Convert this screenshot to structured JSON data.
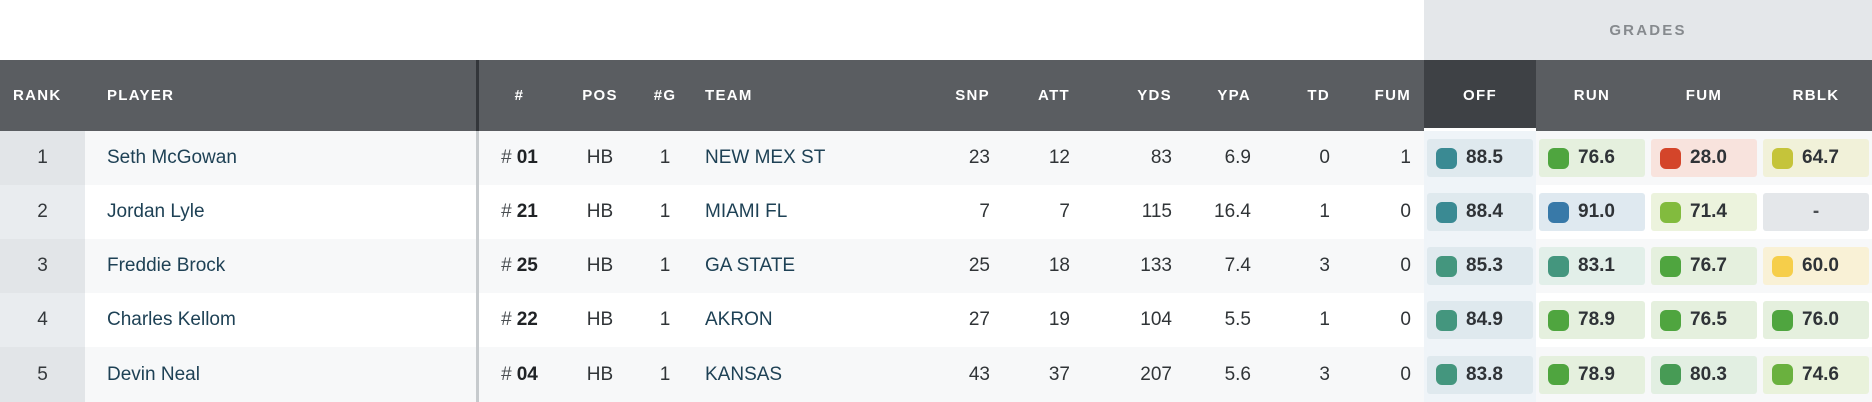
{
  "grades_label": "GRADES",
  "header": {
    "rank": "RANK",
    "player": "PLAYER",
    "jersey": "#",
    "pos": "POS",
    "games": "#G",
    "team": "TEAM",
    "snp": "SNP",
    "att": "ATT",
    "yds": "YDS",
    "ypa": "YPA",
    "td": "TD",
    "fum": "FUM",
    "off": "OFF",
    "run": "RUN",
    "fum_grade": "FUM",
    "rblk": "RBLK"
  },
  "colors": {
    "header_bg": "#5a5d61",
    "sorted_header_bg": "#3e4145",
    "grades_band_bg": "#e4e7ea",
    "link_color": "#1e4155",
    "off_column_bg": "#eff4f8"
  },
  "rows": [
    {
      "rank": "1",
      "player": "Seth McGowan",
      "jersey_hash": "#",
      "jersey_num": "01",
      "pos": "HB",
      "games": "1",
      "team": "NEW MEX ST",
      "snp": "23",
      "att": "12",
      "yds": "83",
      "ypa": "6.9",
      "td": "0",
      "fum": "1",
      "grades": {
        "off": {
          "value": "88.5",
          "color": "#3a8a93",
          "chip_bg": "#dfe9ee"
        },
        "run": {
          "value": "76.6",
          "color": "#4fa53f",
          "chip_bg": "#e5f0de"
        },
        "fum": {
          "value": "28.0",
          "color": "#d4452a",
          "chip_bg": "#f8e3dd"
        },
        "rblk": {
          "value": "64.7",
          "color": "#c5c43a",
          "chip_bg": "#f1f1d9"
        }
      }
    },
    {
      "rank": "2",
      "player": "Jordan Lyle",
      "jersey_hash": "#",
      "jersey_num": "21",
      "pos": "HB",
      "games": "1",
      "team": "MIAMI FL",
      "snp": "7",
      "att": "7",
      "yds": "115",
      "ypa": "16.4",
      "td": "1",
      "fum": "0",
      "grades": {
        "off": {
          "value": "88.4",
          "color": "#3a8a93",
          "chip_bg": "#dfe9ee"
        },
        "run": {
          "value": "91.0",
          "color": "#3879a8",
          "chip_bg": "#dfe9f0"
        },
        "fum": {
          "value": "71.4",
          "color": "#82bb3e",
          "chip_bg": "#ecf3dd"
        },
        "rblk": {
          "value": "-",
          "chip_bg": "#e4e7ea"
        }
      }
    },
    {
      "rank": "3",
      "player": "Freddie Brock",
      "jersey_hash": "#",
      "jersey_num": "25",
      "pos": "HB",
      "games": "1",
      "team": "GA STATE",
      "snp": "25",
      "att": "18",
      "yds": "133",
      "ypa": "7.4",
      "td": "3",
      "fum": "0",
      "grades": {
        "off": {
          "value": "85.3",
          "color": "#44967e",
          "chip_bg": "#dfe9ee"
        },
        "run": {
          "value": "83.1",
          "color": "#44967e",
          "chip_bg": "#e2efe9"
        },
        "fum": {
          "value": "76.7",
          "color": "#4fa53f",
          "chip_bg": "#e5f0de"
        },
        "rblk": {
          "value": "60.0",
          "color": "#f6ce4a",
          "chip_bg": "#f9f1d6"
        }
      }
    },
    {
      "rank": "4",
      "player": "Charles Kellom",
      "jersey_hash": "#",
      "jersey_num": "22",
      "pos": "HB",
      "games": "1",
      "team": "AKRON",
      "snp": "27",
      "att": "19",
      "yds": "104",
      "ypa": "5.5",
      "td": "1",
      "fum": "0",
      "grades": {
        "off": {
          "value": "84.9",
          "color": "#44967e",
          "chip_bg": "#dfe9ee"
        },
        "run": {
          "value": "78.9",
          "color": "#4fa53f",
          "chip_bg": "#e5f0de"
        },
        "fum": {
          "value": "76.5",
          "color": "#4fa53f",
          "chip_bg": "#e5f0de"
        },
        "rblk": {
          "value": "76.0",
          "color": "#4fa53f",
          "chip_bg": "#e5f0de"
        }
      }
    },
    {
      "rank": "5",
      "player": "Devin Neal",
      "jersey_hash": "#",
      "jersey_num": "04",
      "pos": "HB",
      "games": "1",
      "team": "KANSAS",
      "snp": "43",
      "att": "37",
      "yds": "207",
      "ypa": "5.6",
      "td": "3",
      "fum": "0",
      "grades": {
        "off": {
          "value": "83.8",
          "color": "#44967e",
          "chip_bg": "#dfe9ee"
        },
        "run": {
          "value": "78.9",
          "color": "#4fa53f",
          "chip_bg": "#e5f0de"
        },
        "fum": {
          "value": "80.3",
          "color": "#479b55",
          "chip_bg": "#e2efe2"
        },
        "rblk": {
          "value": "74.6",
          "color": "#6ab13e",
          "chip_bg": "#e9f2db"
        }
      }
    }
  ]
}
